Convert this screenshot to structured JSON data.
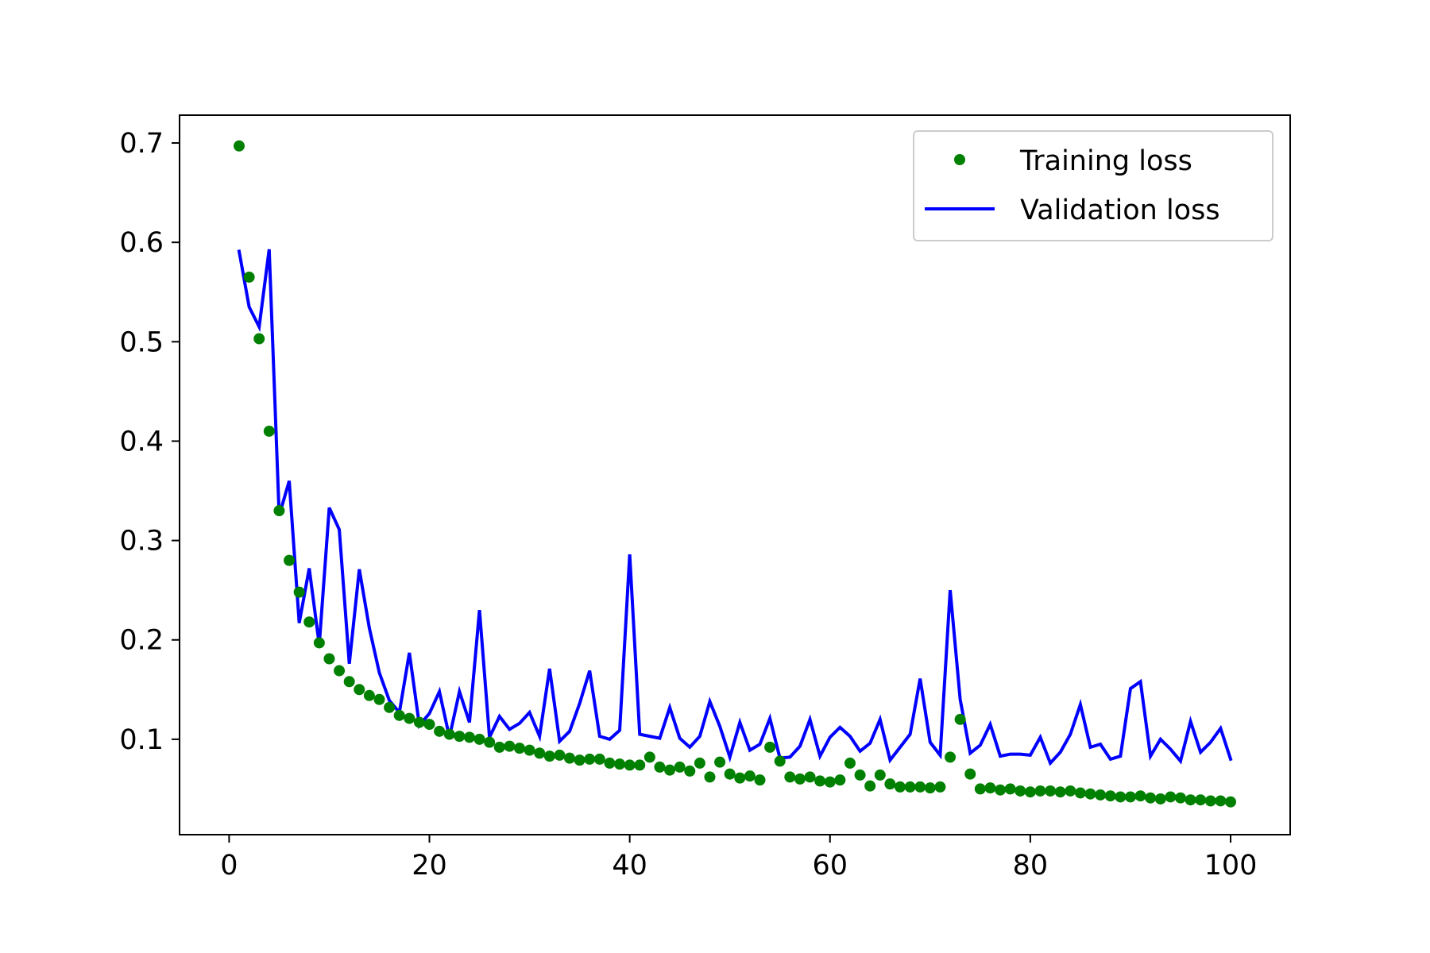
{
  "chart_data": {
    "type": "line",
    "title": "",
    "xlabel": "",
    "ylabel": "",
    "xlim": [
      -4.95,
      105.95
    ],
    "ylim": [
      0.004,
      0.728
    ],
    "x_ticks": [
      0,
      20,
      40,
      60,
      80,
      100
    ],
    "x_tick_labels": [
      "0",
      "20",
      "40",
      "60",
      "80",
      "100"
    ],
    "y_ticks": [
      0.1,
      0.2,
      0.3,
      0.4,
      0.5,
      0.6,
      0.7
    ],
    "y_tick_labels": [
      "0.1",
      "0.2",
      "0.3",
      "0.4",
      "0.5",
      "0.6",
      "0.7"
    ],
    "grid": false,
    "legend_position": "top-right",
    "x": [
      1,
      2,
      3,
      4,
      5,
      6,
      7,
      8,
      9,
      10,
      11,
      12,
      13,
      14,
      15,
      16,
      17,
      18,
      19,
      20,
      21,
      22,
      23,
      24,
      25,
      26,
      27,
      28,
      29,
      30,
      31,
      32,
      33,
      34,
      35,
      36,
      37,
      38,
      39,
      40,
      41,
      42,
      43,
      44,
      45,
      46,
      47,
      48,
      49,
      50,
      51,
      52,
      53,
      54,
      55,
      56,
      57,
      58,
      59,
      60,
      61,
      62,
      63,
      64,
      65,
      66,
      67,
      68,
      69,
      70,
      71,
      72,
      73,
      74,
      75,
      76,
      77,
      78,
      79,
      80,
      81,
      82,
      83,
      84,
      85,
      86,
      87,
      88,
      89,
      90,
      91,
      92,
      93,
      94,
      95,
      96,
      97,
      98,
      99,
      100
    ],
    "series": [
      {
        "name": "Training loss",
        "style": "markers",
        "color": "#008000",
        "values": [
          0.697,
          0.565,
          0.503,
          0.41,
          0.33,
          0.28,
          0.248,
          0.218,
          0.197,
          0.181,
          0.169,
          0.158,
          0.15,
          0.144,
          0.14,
          0.132,
          0.124,
          0.121,
          0.117,
          0.115,
          0.108,
          0.105,
          0.103,
          0.102,
          0.1,
          0.097,
          0.092,
          0.093,
          0.091,
          0.089,
          0.086,
          0.083,
          0.084,
          0.081,
          0.079,
          0.08,
          0.08,
          0.076,
          0.075,
          0.074,
          0.074,
          0.082,
          0.072,
          0.069,
          0.072,
          0.068,
          0.076,
          0.062,
          0.077,
          0.065,
          0.061,
          0.063,
          0.059,
          0.092,
          0.078,
          0.062,
          0.06,
          0.062,
          0.058,
          0.057,
          0.059,
          0.076,
          0.064,
          0.053,
          0.064,
          0.055,
          0.052,
          0.052,
          0.052,
          0.051,
          0.052,
          0.082,
          0.12,
          0.065,
          0.05,
          0.051,
          0.049,
          0.05,
          0.048,
          0.047,
          0.048,
          0.048,
          0.047,
          0.048,
          0.046,
          0.045,
          0.044,
          0.043,
          0.042,
          0.042,
          0.043,
          0.041,
          0.04,
          0.042,
          0.041,
          0.039,
          0.039,
          0.038,
          0.038,
          0.037
        ]
      },
      {
        "name": "Validation loss",
        "style": "line",
        "color": "#0000ff",
        "values": [
          0.591,
          0.535,
          0.515,
          0.593,
          0.325,
          0.36,
          0.217,
          0.272,
          0.195,
          0.333,
          0.311,
          0.176,
          0.271,
          0.212,
          0.167,
          0.139,
          0.127,
          0.187,
          0.114,
          0.126,
          0.148,
          0.102,
          0.148,
          0.117,
          0.23,
          0.102,
          0.123,
          0.11,
          0.116,
          0.127,
          0.103,
          0.171,
          0.098,
          0.108,
          0.136,
          0.169,
          0.103,
          0.1,
          0.109,
          0.286,
          0.105,
          0.103,
          0.101,
          0.132,
          0.101,
          0.092,
          0.103,
          0.138,
          0.113,
          0.082,
          0.117,
          0.089,
          0.095,
          0.121,
          0.081,
          0.082,
          0.093,
          0.12,
          0.083,
          0.102,
          0.112,
          0.103,
          0.088,
          0.096,
          0.12,
          0.079,
          0.092,
          0.105,
          0.161,
          0.097,
          0.084,
          0.25,
          0.14,
          0.086,
          0.094,
          0.115,
          0.083,
          0.085,
          0.085,
          0.084,
          0.102,
          0.076,
          0.087,
          0.105,
          0.135,
          0.092,
          0.095,
          0.08,
          0.083,
          0.151,
          0.158,
          0.083,
          0.1,
          0.09,
          0.078,
          0.118,
          0.087,
          0.097,
          0.111,
          0.08
        ]
      }
    ]
  }
}
